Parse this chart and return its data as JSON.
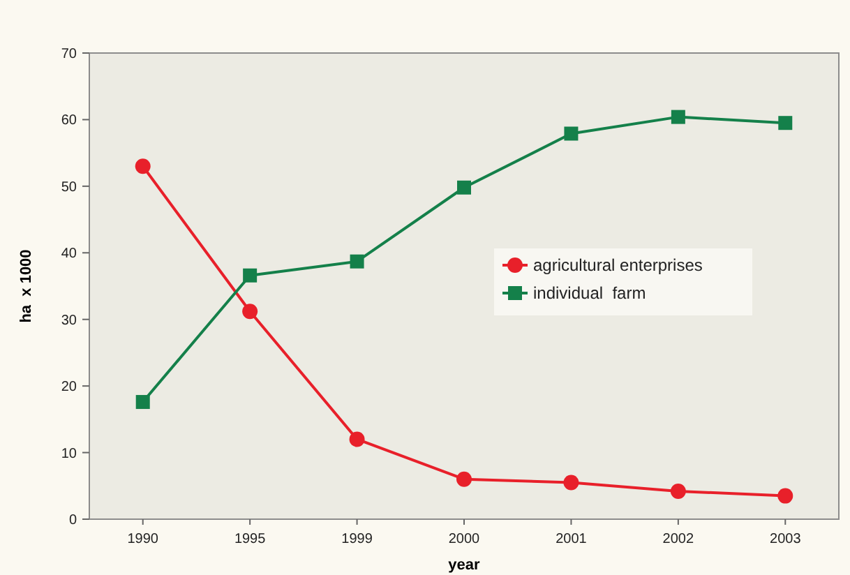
{
  "chart_data": {
    "type": "line",
    "xlabel": "year",
    "ylabel": "ha  x 1000",
    "categories": [
      "1990",
      "1995",
      "1999",
      "2000",
      "2001",
      "2002",
      "2003"
    ],
    "series": [
      {
        "name": "agricultural enterprises",
        "color": "#e8202a",
        "marker": "circle",
        "values": [
          53.0,
          31.2,
          12.0,
          6.0,
          5.5,
          4.2,
          3.5
        ]
      },
      {
        "name": "individual  farm",
        "color": "#14804a",
        "marker": "square",
        "values": [
          17.6,
          36.6,
          38.7,
          49.8,
          57.9,
          60.4,
          59.5
        ]
      }
    ],
    "ylim": [
      0,
      70
    ],
    "yticks": [
      0,
      10,
      20,
      30,
      40,
      50,
      60,
      70
    ],
    "grid": false,
    "legend": "right"
  }
}
